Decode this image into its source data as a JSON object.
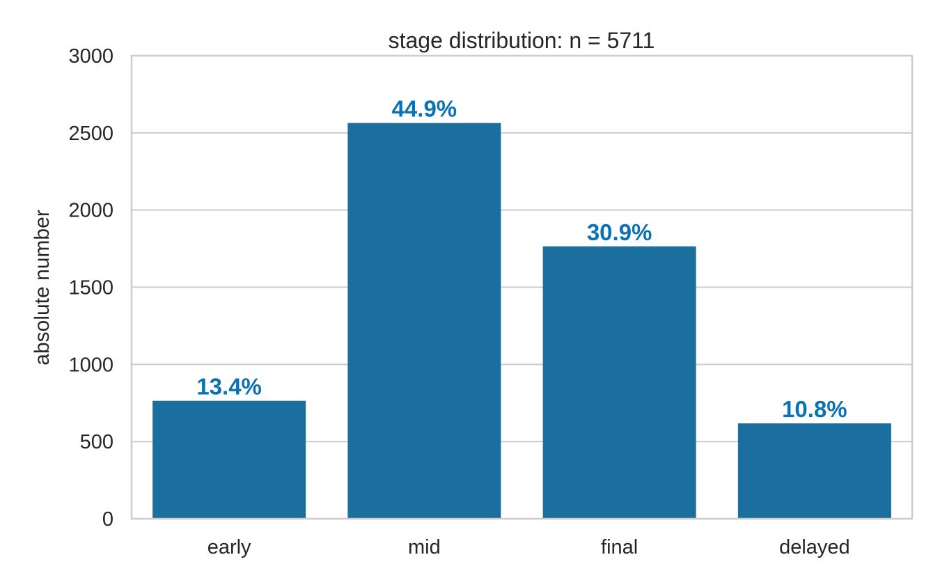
{
  "chart_data": {
    "type": "bar",
    "title": "stage distribution: n = 5711",
    "xlabel": "",
    "ylabel": "absolute number",
    "categories": [
      "early",
      "mid",
      "final",
      "delayed"
    ],
    "values": [
      764,
      2564,
      1765,
      618
    ],
    "data_labels": [
      "13.4%",
      "44.9%",
      "30.9%",
      "10.8%"
    ],
    "ylim": [
      0,
      3000
    ],
    "yticks": [
      0,
      500,
      1000,
      1500,
      2000,
      2500,
      3000
    ],
    "ytick_labels": [
      "0",
      "500",
      "1000",
      "1500",
      "2000",
      "2500",
      "3000"
    ],
    "grid": "horizontal",
    "bar_color": "#1a6f9e",
    "label_color": "#0a72b4",
    "grid_color": "#cccccc",
    "spine_color": "#cccccc",
    "text_color": "#262626"
  }
}
